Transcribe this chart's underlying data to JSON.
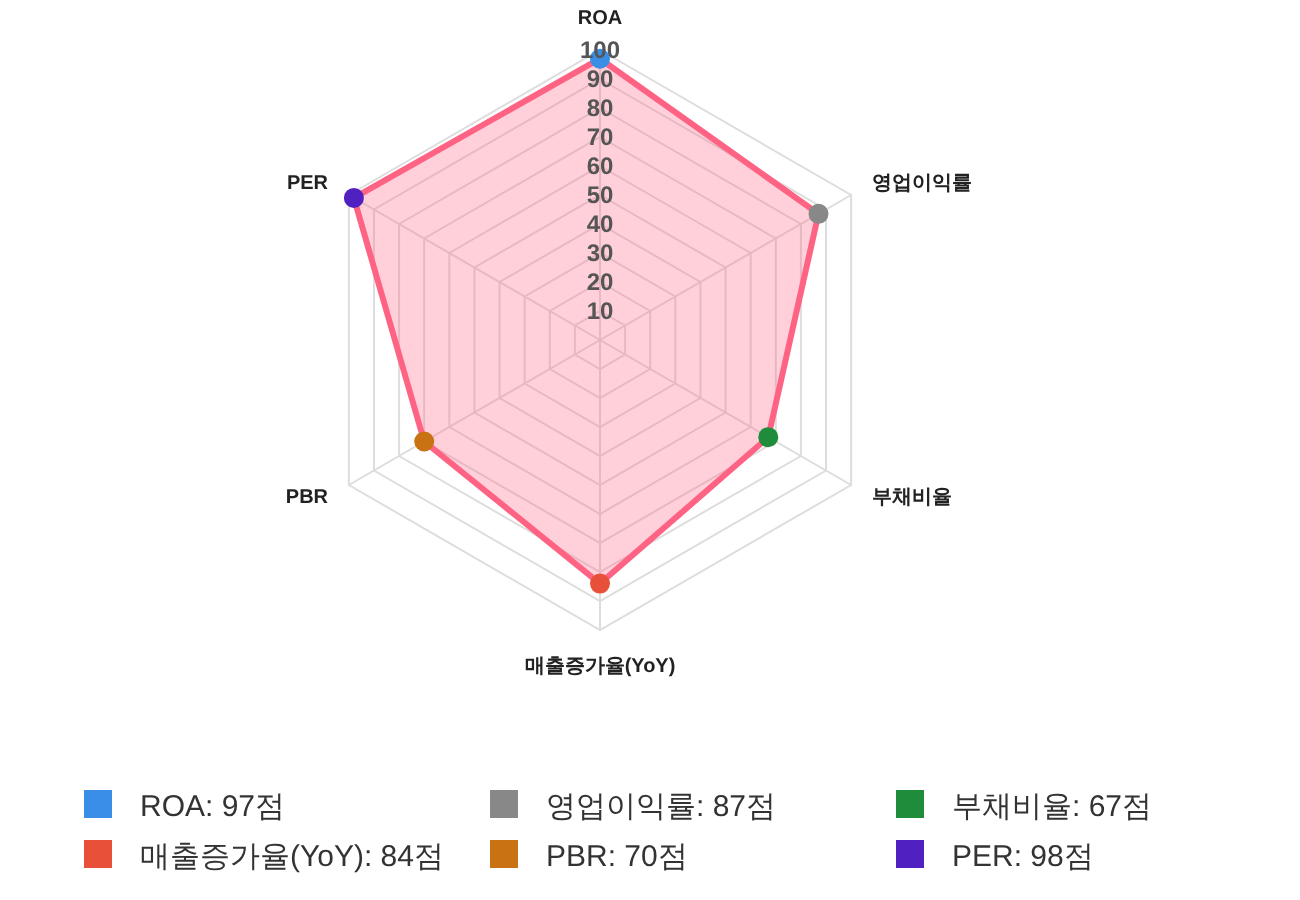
{
  "chart_data": {
    "type": "radar",
    "categories": [
      "ROA",
      "영업이익률",
      "부채비율",
      "매출증가율(YoY)",
      "PBR",
      "PER"
    ],
    "series": [
      {
        "color": "#ff6384",
        "values": [
          97,
          87,
          67,
          84,
          70,
          98
        ],
        "colors": [
          "#3a8ee6",
          "#888888",
          "#1e8c3a",
          "#e8503a",
          "#c87214",
          "#5020c0"
        ]
      }
    ],
    "annotations": [
      "ROA: 97점",
      "영업이익률: 87점",
      "부채비율: 67점",
      "매출증가율(YoY): 84점",
      "PBR: 70점",
      "PER: 98점"
    ],
    "ylim": [
      0,
      100
    ],
    "yticks": [
      10,
      20,
      30,
      40,
      50,
      60,
      70,
      80,
      90,
      100
    ],
    "grid": true,
    "marker": "circle"
  }
}
